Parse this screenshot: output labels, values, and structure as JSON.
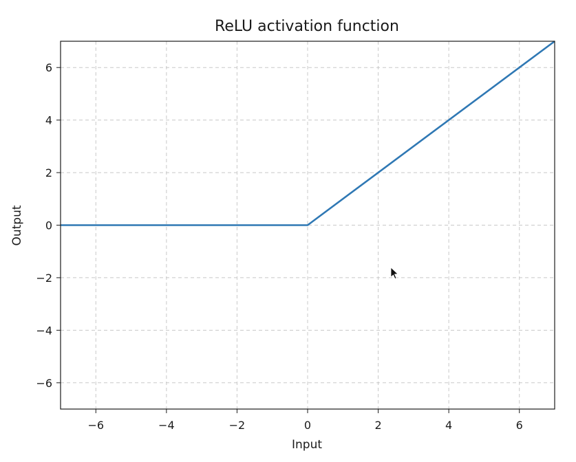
{
  "chart_data": {
    "type": "line",
    "title": "ReLU activation function",
    "xlabel": "Input",
    "ylabel": "Output",
    "xlim": [
      -7,
      7
    ],
    "ylim": [
      -7,
      7
    ],
    "xticks": [
      -6,
      -4,
      -2,
      0,
      2,
      4,
      6
    ],
    "yticks": [
      -6,
      -4,
      -2,
      0,
      2,
      4,
      6
    ],
    "xtick_labels": [
      "−6",
      "−4",
      "−2",
      "0",
      "2",
      "4",
      "6"
    ],
    "ytick_labels": [
      "−6",
      "−4",
      "−2",
      "0",
      "2",
      "4",
      "6"
    ],
    "grid": true,
    "series": [
      {
        "color": "#2f78b4",
        "x": [
          -7,
          0,
          7
        ],
        "y": [
          0,
          0,
          7
        ]
      }
    ]
  }
}
